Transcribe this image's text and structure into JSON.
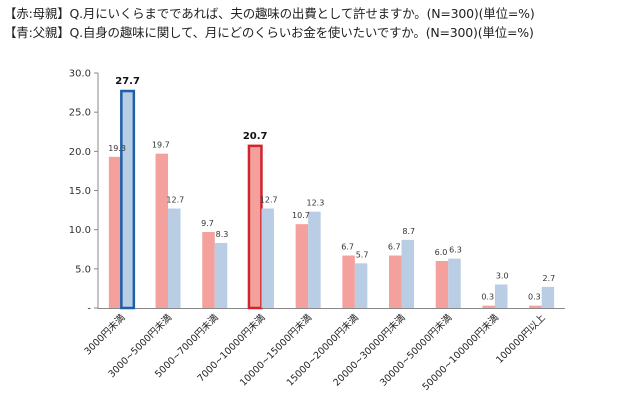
{
  "header": {
    "line1": "【赤:母親】Q.月にいくらまでであれば、夫の趣味の出費として許せますか。(N=300)(単位=%)",
    "line2": "【青:父親】Q.自身の趣味に関して、月にどのくらいお金を使いたいですか。(N=300)(単位=%)"
  },
  "chart_data": {
    "type": "bar",
    "categories": [
      "3000円未満",
      "3000~5000円未満",
      "5000~7000円未満",
      "7000~10000円未満",
      "10000~15000円未満",
      "15000~20000円未満",
      "20000~30000円未満",
      "30000~50000円未満",
      "50000~100000円未満",
      "100000円以上"
    ],
    "series": [
      {
        "color": "#f4a09c",
        "values": [
          19.3,
          19.7,
          9.7,
          20.7,
          10.7,
          6.7,
          6.7,
          6.0,
          0.3,
          0.3
        ]
      },
      {
        "color": "#b9cde4",
        "values": [
          27.7,
          12.7,
          8.3,
          12.7,
          12.3,
          5.7,
          8.7,
          6.3,
          3.0,
          2.7
        ]
      }
    ],
    "highlights": [
      {
        "series": 1,
        "index": 0,
        "outline": "#1f5fa8"
      },
      {
        "series": 0,
        "index": 3,
        "outline": "#d0262b"
      }
    ],
    "yticks": [
      "-",
      "5.0",
      "10.0",
      "15.0",
      "20.0",
      "25.0",
      "30.0"
    ],
    "ylim": [
      0,
      30
    ],
    "grid": false
  }
}
